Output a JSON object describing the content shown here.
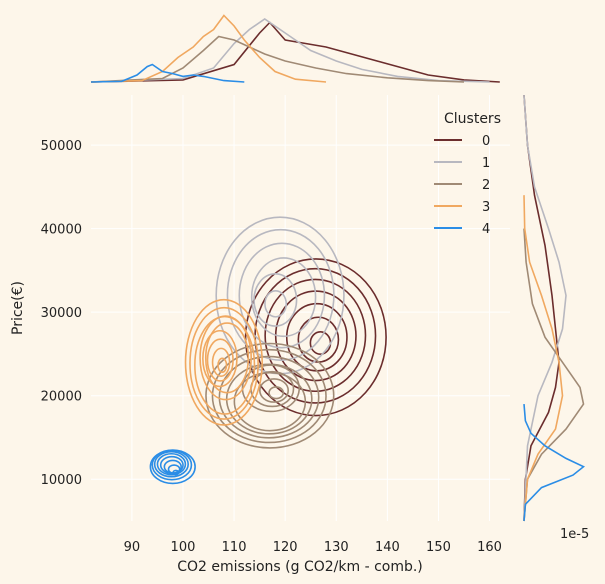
{
  "chart_data": {
    "type": "kde-jointplot",
    "xlabel": "CO2 emissions (g CO2/km - comb.)",
    "ylabel": "Price(€)",
    "x_ticks": [
      90,
      100,
      110,
      120,
      130,
      140,
      150,
      160
    ],
    "y_ticks": [
      10000,
      20000,
      30000,
      40000,
      50000
    ],
    "xlim": [
      82,
      164
    ],
    "ylim": [
      5000,
      56000
    ],
    "marginal_y_exponent": "1e-5",
    "grid": true,
    "legend": {
      "title": "Clusters",
      "placement": "top-right"
    },
    "series": [
      {
        "name": "0",
        "color": "#6b2d2d",
        "center": [
          126,
          27000
        ],
        "spread": [
          11,
          7500
        ],
        "x_marginal": [
          [
            82,
            0
          ],
          [
            100,
            0.03
          ],
          [
            110,
            0.25
          ],
          [
            115,
            0.7
          ],
          [
            117,
            0.85
          ],
          [
            120,
            0.6
          ],
          [
            124,
            0.55
          ],
          [
            128,
            0.5
          ],
          [
            133,
            0.4
          ],
          [
            138,
            0.3
          ],
          [
            143,
            0.2
          ],
          [
            148,
            0.1
          ],
          [
            155,
            0.03
          ],
          [
            162,
            0
          ]
        ],
        "y_marginal": [
          [
            5000,
            0
          ],
          [
            10000,
            0.02
          ],
          [
            14000,
            0.1
          ],
          [
            18000,
            0.35
          ],
          [
            21000,
            0.45
          ],
          [
            24000,
            0.5
          ],
          [
            28000,
            0.45
          ],
          [
            32000,
            0.4
          ],
          [
            38000,
            0.3
          ],
          [
            44000,
            0.15
          ],
          [
            50000,
            0.05
          ],
          [
            56000,
            0
          ]
        ]
      },
      {
        "name": "1",
        "color": "#b8b8c0",
        "center": [
          119,
          32000
        ],
        "spread": [
          10,
          7500
        ],
        "x_marginal": [
          [
            82,
            0
          ],
          [
            100,
            0.05
          ],
          [
            106,
            0.2
          ],
          [
            110,
            0.55
          ],
          [
            113,
            0.75
          ],
          [
            116,
            0.9
          ],
          [
            120,
            0.7
          ],
          [
            125,
            0.45
          ],
          [
            130,
            0.3
          ],
          [
            135,
            0.18
          ],
          [
            142,
            0.08
          ],
          [
            150,
            0.02
          ],
          [
            160,
            0
          ]
        ],
        "y_marginal": [
          [
            5000,
            0
          ],
          [
            14000,
            0.05
          ],
          [
            20000,
            0.2
          ],
          [
            24000,
            0.4
          ],
          [
            28000,
            0.55
          ],
          [
            32000,
            0.6
          ],
          [
            36000,
            0.5
          ],
          [
            40000,
            0.35
          ],
          [
            45000,
            0.15
          ],
          [
            50000,
            0.05
          ],
          [
            56000,
            0
          ]
        ]
      },
      {
        "name": "2",
        "color": "#a08a75",
        "center": [
          117,
          20000
        ],
        "spread": [
          10,
          5000
        ],
        "x_marginal": [
          [
            82,
            0
          ],
          [
            96,
            0.05
          ],
          [
            100,
            0.2
          ],
          [
            104,
            0.45
          ],
          [
            107,
            0.65
          ],
          [
            110,
            0.6
          ],
          [
            113,
            0.5
          ],
          [
            116,
            0.4
          ],
          [
            120,
            0.3
          ],
          [
            126,
            0.2
          ],
          [
            132,
            0.12
          ],
          [
            140,
            0.06
          ],
          [
            148,
            0.02
          ],
          [
            155,
            0
          ]
        ],
        "y_marginal": [
          [
            5000,
            0
          ],
          [
            10000,
            0.05
          ],
          [
            13000,
            0.25
          ],
          [
            16000,
            0.6
          ],
          [
            19000,
            0.85
          ],
          [
            21000,
            0.8
          ],
          [
            24000,
            0.55
          ],
          [
            27000,
            0.3
          ],
          [
            31000,
            0.12
          ],
          [
            36000,
            0.03
          ],
          [
            40000,
            0
          ]
        ]
      },
      {
        "name": "3",
        "color": "#f0a860",
        "center": [
          108,
          24000
        ],
        "spread": [
          6,
          6000
        ],
        "x_marginal": [
          [
            82,
            0
          ],
          [
            92,
            0.02
          ],
          [
            96,
            0.15
          ],
          [
            99,
            0.35
          ],
          [
            102,
            0.5
          ],
          [
            104,
            0.65
          ],
          [
            106,
            0.75
          ],
          [
            108,
            0.95
          ],
          [
            110,
            0.8
          ],
          [
            112,
            0.6
          ],
          [
            115,
            0.35
          ],
          [
            118,
            0.15
          ],
          [
            122,
            0.04
          ],
          [
            128,
            0
          ]
        ],
        "y_marginal": [
          [
            5000,
            0
          ],
          [
            10000,
            0.05
          ],
          [
            13000,
            0.2
          ],
          [
            16000,
            0.45
          ],
          [
            20000,
            0.55
          ],
          [
            24000,
            0.5
          ],
          [
            28000,
            0.4
          ],
          [
            32000,
            0.25
          ],
          [
            36000,
            0.08
          ],
          [
            40000,
            0.01
          ],
          [
            44000,
            0
          ]
        ]
      },
      {
        "name": "4",
        "color": "#2b8de6",
        "center": [
          98,
          11500
        ],
        "spread": [
          3.5,
          1600
        ],
        "x_marginal": [
          [
            82,
            0
          ],
          [
            88,
            0.01
          ],
          [
            91,
            0.1
          ],
          [
            93,
            0.22
          ],
          [
            94,
            0.25
          ],
          [
            96,
            0.15
          ],
          [
            98,
            0.12
          ],
          [
            100,
            0.08
          ],
          [
            102,
            0.1
          ],
          [
            104,
            0.08
          ],
          [
            108,
            0.02
          ],
          [
            112,
            0
          ]
        ],
        "y_marginal": [
          [
            5000,
            0
          ],
          [
            7000,
            0.02
          ],
          [
            9000,
            0.25
          ],
          [
            10500,
            0.7
          ],
          [
            11500,
            0.85
          ],
          [
            12500,
            0.6
          ],
          [
            14000,
            0.3
          ],
          [
            15500,
            0.1
          ],
          [
            17000,
            0.02
          ],
          [
            19000,
            0
          ]
        ]
      }
    ]
  }
}
